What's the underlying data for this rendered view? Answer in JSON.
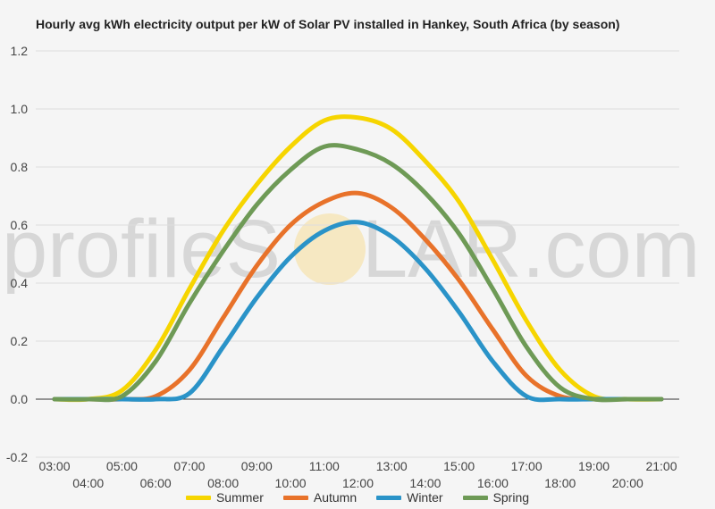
{
  "chart_data": {
    "type": "line",
    "title": "Hourly avg kWh electricity output per kW of Solar PV installed in Hankey, South Africa (by season)",
    "xlabel": "",
    "ylabel": "",
    "categories": [
      "03:00",
      "04:00",
      "05:00",
      "06:00",
      "07:00",
      "08:00",
      "09:00",
      "10:00",
      "11:00",
      "12:00",
      "13:00",
      "14:00",
      "15:00",
      "16:00",
      "17:00",
      "18:00",
      "19:00",
      "20:00",
      "21:00"
    ],
    "ylim": [
      -0.2,
      1.2
    ],
    "yticks": [
      "-0.2",
      "0.0",
      "0.2",
      "0.4",
      "0.6",
      "0.8",
      "1.0",
      "1.2"
    ],
    "grid": true,
    "legend": "bottom",
    "series": [
      {
        "name": "Summer",
        "color": "#f6d500",
        "values": [
          0,
          0,
          0.03,
          0.17,
          0.38,
          0.58,
          0.74,
          0.87,
          0.96,
          0.97,
          0.93,
          0.82,
          0.68,
          0.48,
          0.27,
          0.1,
          0.01,
          0,
          0
        ]
      },
      {
        "name": "Autumn",
        "color": "#e8722a",
        "values": [
          0,
          0,
          0,
          0.01,
          0.1,
          0.28,
          0.46,
          0.6,
          0.68,
          0.71,
          0.66,
          0.55,
          0.41,
          0.24,
          0.08,
          0.01,
          0,
          0,
          0
        ]
      },
      {
        "name": "Winter",
        "color": "#2a93c8",
        "values": [
          0,
          0,
          0,
          0,
          0.02,
          0.18,
          0.35,
          0.49,
          0.58,
          0.61,
          0.56,
          0.45,
          0.3,
          0.13,
          0.01,
          0,
          0,
          0,
          0
        ]
      },
      {
        "name": "Spring",
        "color": "#6e9a56",
        "values": [
          0,
          0,
          0.01,
          0.13,
          0.33,
          0.51,
          0.67,
          0.79,
          0.87,
          0.86,
          0.81,
          0.71,
          0.57,
          0.38,
          0.18,
          0.04,
          0,
          0,
          0
        ]
      }
    ]
  },
  "watermark": "profileSOLAR.com"
}
